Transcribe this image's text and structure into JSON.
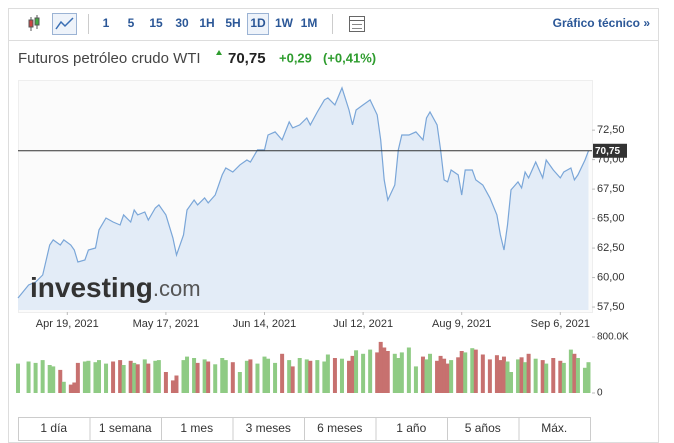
{
  "toolbar": {
    "intervals": [
      "1",
      "5",
      "15",
      "30",
      "1H",
      "5H",
      "1D",
      "1W",
      "1M"
    ],
    "selected": 6,
    "link": "Gráfico técnico »"
  },
  "header": {
    "title": "Futuros petróleo crudo WTI",
    "price": "70,75",
    "change": "+0,29",
    "change_pct": "(+0,41%)"
  },
  "watermark": [
    "investing",
    ".com"
  ],
  "ranges": [
    "1 día",
    "1 semana",
    "1 mes",
    "3 meses",
    "6 meses",
    "1 año",
    "5 años",
    "Máx."
  ],
  "chart_data": {
    "type": "area",
    "color": "#7aa6d8",
    "fill": "#e3ecf7",
    "x": [
      "2021-04-05",
      "2021-04-08",
      "2021-04-10",
      "2021-04-12",
      "2021-04-14",
      "2021-04-15",
      "2021-04-17",
      "2021-04-18",
      "2021-04-20",
      "2021-04-21",
      "2021-04-22",
      "2021-04-24",
      "2021-04-25",
      "2021-04-27",
      "2021-04-28",
      "2021-04-30",
      "2021-05-02",
      "2021-05-04",
      "2021-05-05",
      "2021-05-07",
      "2021-05-08",
      "2021-05-09",
      "2021-05-11",
      "2021-05-12",
      "2021-05-14",
      "2021-05-15",
      "2021-05-17",
      "2021-05-19",
      "2021-05-20",
      "2021-05-22",
      "2021-05-23",
      "2021-05-25",
      "2021-05-26",
      "2021-05-28",
      "2021-05-29",
      "2021-05-31",
      "2021-06-02",
      "2021-06-03",
      "2021-06-05",
      "2021-06-07",
      "2021-06-09",
      "2021-06-10",
      "2021-06-12",
      "2021-06-14",
      "2021-06-15",
      "2021-06-17",
      "2021-06-19",
      "2021-06-21",
      "2021-06-22",
      "2021-06-24",
      "2021-06-26",
      "2021-06-27",
      "2021-06-29",
      "2021-07-01",
      "2021-07-02",
      "2021-07-04",
      "2021-07-06",
      "2021-07-08",
      "2021-07-09",
      "2021-07-10",
      "2021-07-12",
      "2021-07-14",
      "2021-07-16",
      "2021-07-17",
      "2021-07-18",
      "2021-07-19",
      "2021-07-21",
      "2021-07-22",
      "2021-07-23",
      "2021-07-25",
      "2021-07-27",
      "2021-07-29",
      "2021-07-30",
      "2021-07-31",
      "2021-08-02",
      "2021-08-03",
      "2021-08-04",
      "2021-08-05",
      "2021-08-06",
      "2021-08-08",
      "2021-08-09",
      "2021-08-10",
      "2021-08-12",
      "2021-08-13",
      "2021-08-15",
      "2021-08-17",
      "2021-08-19",
      "2021-08-20",
      "2021-08-21",
      "2021-08-22",
      "2021-08-23",
      "2021-08-25",
      "2021-08-26",
      "2021-08-27",
      "2021-08-28",
      "2021-08-30",
      "2021-09-01",
      "2021-09-02",
      "2021-09-04",
      "2021-09-06",
      "2021-09-07",
      "2021-09-09",
      "2021-09-10",
      "2021-09-11",
      "2021-09-13",
      "2021-09-14"
    ],
    "values": [
      58.27,
      59.37,
      59.62,
      60.22,
      62.76,
      63.19,
      62.76,
      63.19,
      62.76,
      62.34,
      61.32,
      61.49,
      62.34,
      62.51,
      64.04,
      65.05,
      64.71,
      64.46,
      65.31,
      64.71,
      65.73,
      65.31,
      65.56,
      64.88,
      65.9,
      66.16,
      65.31,
      63.36,
      61.91,
      63.61,
      65.73,
      66.58,
      66.16,
      66.75,
      66.33,
      67.0,
      68.7,
      69.29,
      68.95,
      69.55,
      69.97,
      69.8,
      70.82,
      70.82,
      72.09,
      72.35,
      71.67,
      73.2,
      72.69,
      72.94,
      73.53,
      72.94,
      74.04,
      75.06,
      75.23,
      74.64,
      76.08,
      74.21,
      72.94,
      74.21,
      74.64,
      75.06,
      73.79,
      71.67,
      68.28,
      66.58,
      67.85,
      70.82,
      72.09,
      72.09,
      72.35,
      71.67,
      73.53,
      74.04,
      72.94,
      70.82,
      68.28,
      68.11,
      69.12,
      68.7,
      67.0,
      69.12,
      69.12,
      68.28,
      67.85,
      66.75,
      65.31,
      63.61,
      62.34,
      64.46,
      67.43,
      68.11,
      67.6,
      68.95,
      68.45,
      69.8,
      68.45,
      69.97,
      69.12,
      68.45,
      68.95,
      69.29,
      68.28,
      68.7,
      69.97,
      70.75
    ],
    "xlim": [
      "2021-04-05",
      "2021-09-15"
    ],
    "xticks": [
      {
        "value": "2021-04-19",
        "label": "Apr 19, 2021"
      },
      {
        "value": "2021-05-17",
        "label": "May 17, 2021"
      },
      {
        "value": "2021-06-14",
        "label": "Jun 14, 2021"
      },
      {
        "value": "2021-07-12",
        "label": "Jul 12, 2021"
      },
      {
        "value": "2021-08-09",
        "label": "Aug 9, 2021"
      },
      {
        "value": "2021-09-06",
        "label": "Sep 6, 2021"
      }
    ],
    "ylim": [
      57.25,
      76.75
    ],
    "yticks": [
      {
        "value": 57.5,
        "label": "57,50"
      },
      {
        "value": 60,
        "label": "60,00"
      },
      {
        "value": 62.5,
        "label": "62,50"
      },
      {
        "value": 65,
        "label": "65,00"
      },
      {
        "value": 67.5,
        "label": "67,50"
      },
      {
        "value": 70,
        "label": "70,00"
      },
      {
        "value": 72.5,
        "label": "72,50"
      }
    ],
    "price_line": {
      "value": 70.75,
      "label": "70,75"
    },
    "volume": {
      "up_color": "#8fcb84",
      "down_color": "#c7716f",
      "ylim": [
        0,
        800000
      ],
      "yticks": [
        0,
        {
          "value": 800000,
          "label": "800.0K"
        }
      ],
      "values": [
        420000,
        450000,
        430000,
        470000,
        400000,
        380000,
        330000,
        160000,
        120000,
        150000,
        430000,
        450000,
        460000,
        440000,
        470000,
        420000,
        450000,
        470000,
        400000,
        460000,
        430000,
        410000,
        480000,
        420000,
        460000,
        470000,
        300000,
        180000,
        250000,
        470000,
        520000,
        500000,
        430000,
        480000,
        450000,
        410000,
        500000,
        470000,
        440000,
        300000,
        460000,
        480000,
        420000,
        520000,
        490000,
        430000,
        560000,
        470000,
        380000,
        500000,
        480000,
        460000,
        470000,
        450000,
        550000,
        500000,
        490000,
        460000,
        530000,
        610000,
        560000,
        620000,
        580000,
        730000,
        650000,
        600000,
        560000,
        500000,
        580000,
        650000,
        380000,
        520000,
        480000,
        560000,
        460000,
        530000,
        490000,
        420000,
        470000,
        510000,
        600000,
        580000,
        640000,
        620000,
        550000,
        480000,
        540000,
        470000,
        520000,
        450000,
        300000,
        480000,
        510000,
        440000,
        560000,
        490000,
        470000,
        420000,
        500000,
        460000,
        430000,
        620000,
        560000,
        500000,
        360000,
        440000
      ]
    }
  }
}
